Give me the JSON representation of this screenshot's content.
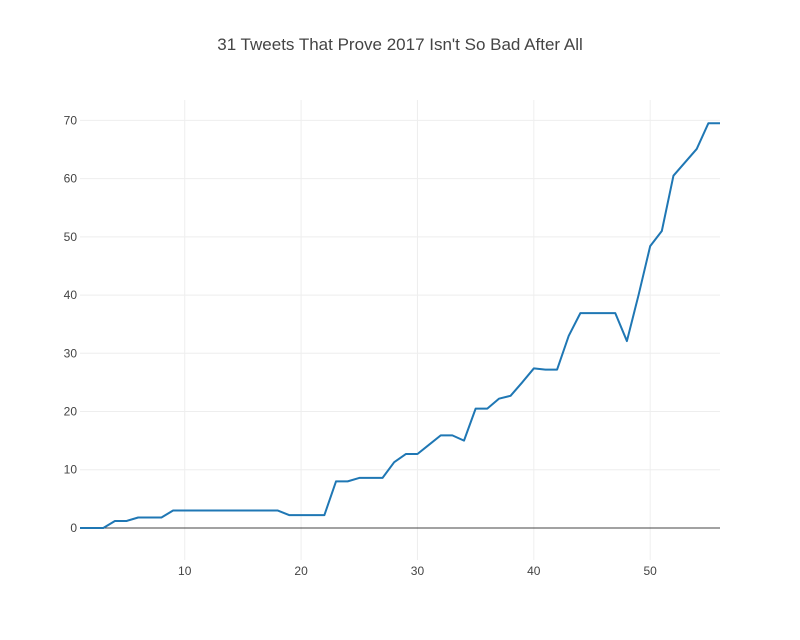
{
  "chart_data": {
    "type": "line",
    "title": "31 Tweets That Prove 2017 Isn't So Bad After All",
    "xlabel": "",
    "ylabel": "",
    "xlim": [
      1,
      56
    ],
    "ylim": [
      -5.5,
      73.5
    ],
    "xticks": [
      10,
      20,
      30,
      40,
      50
    ],
    "yticks": [
      0,
      10,
      20,
      30,
      40,
      50,
      60,
      70
    ],
    "grid": true,
    "series": [
      {
        "color": "#1f77b4",
        "x": [
          1,
          2,
          3,
          4,
          5,
          6,
          7,
          8,
          9,
          10,
          11,
          12,
          13,
          14,
          15,
          16,
          17,
          18,
          19,
          20,
          21,
          22,
          23,
          24,
          25,
          26,
          27,
          28,
          29,
          30,
          31,
          32,
          33,
          34,
          35,
          36,
          37,
          38,
          39,
          40,
          41,
          42,
          43,
          44,
          45,
          46,
          47,
          48,
          49,
          50,
          51,
          52,
          53,
          54,
          55,
          56
        ],
        "values": [
          0,
          0,
          0,
          1.2,
          1.2,
          1.8,
          1.8,
          1.8,
          3,
          3,
          3,
          3,
          3,
          3,
          3,
          3,
          3,
          3,
          2.2,
          2.2,
          2.2,
          2.2,
          8,
          8,
          8.6,
          8.6,
          8.6,
          11.3,
          12.7,
          12.7,
          14.3,
          15.9,
          15.9,
          15,
          20.5,
          20.5,
          22.2,
          22.7,
          25,
          27.4,
          27.2,
          27.2,
          33,
          36.9,
          36.9,
          36.9,
          36.9,
          32.1,
          40,
          48.4,
          51,
          60.5,
          62.8,
          65.1,
          69.5,
          69.5
        ]
      }
    ]
  }
}
